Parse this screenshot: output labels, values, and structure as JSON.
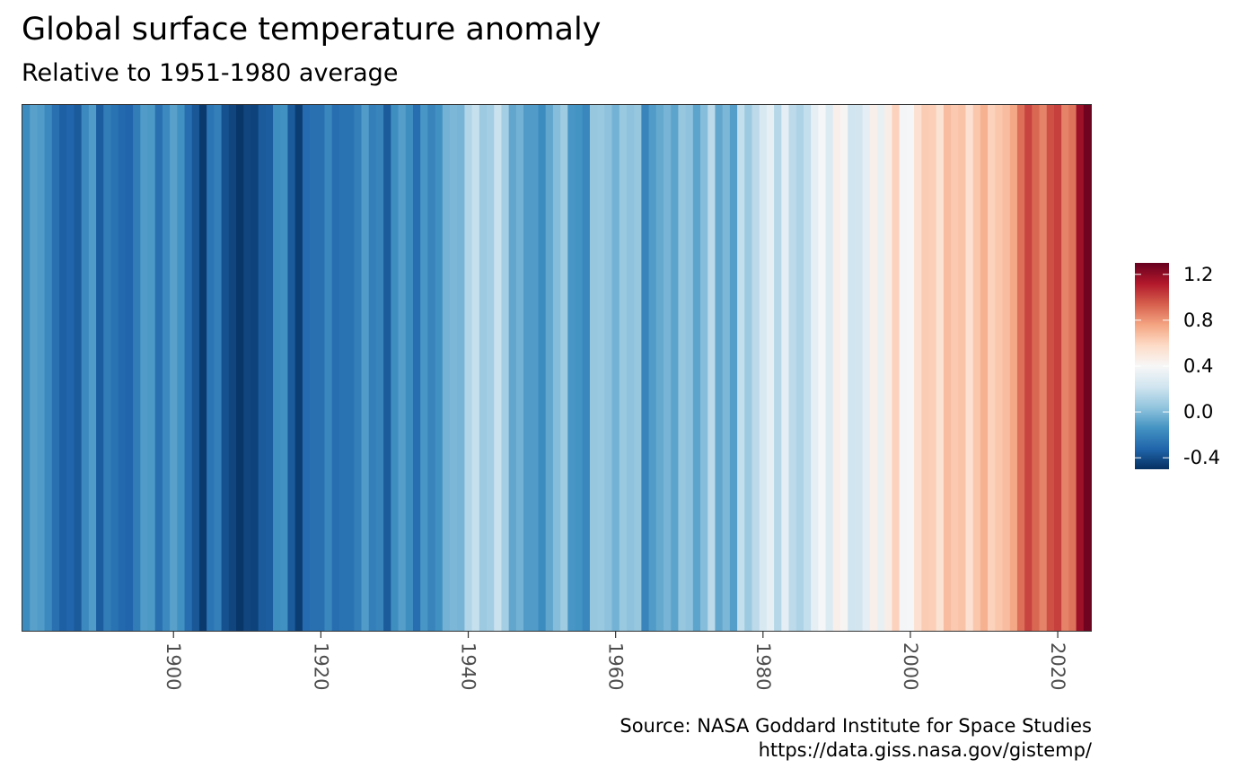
{
  "chart_data": {
    "type": "heatmap",
    "title": "Global surface temperature anomaly",
    "subtitle": "Relative to 1951-1980 average",
    "caption": [
      "Source: NASA Goddard Institute for Space Studies",
      "https://data.giss.nasa.gov/gistemp/"
    ],
    "x_label": "",
    "x_start_year": 1880,
    "x_end_year": 2024,
    "x_ticks": [
      "1900",
      "1920",
      "1940",
      "1960",
      "1980",
      "2000",
      "2020"
    ],
    "years": [
      1880,
      1881,
      1882,
      1883,
      1884,
      1885,
      1886,
      1887,
      1888,
      1889,
      1890,
      1891,
      1892,
      1893,
      1894,
      1895,
      1896,
      1897,
      1898,
      1899,
      1900,
      1901,
      1902,
      1903,
      1904,
      1905,
      1906,
      1907,
      1908,
      1909,
      1910,
      1911,
      1912,
      1913,
      1914,
      1915,
      1916,
      1917,
      1918,
      1919,
      1920,
      1921,
      1922,
      1923,
      1924,
      1925,
      1926,
      1927,
      1928,
      1929,
      1930,
      1931,
      1932,
      1933,
      1934,
      1935,
      1936,
      1937,
      1938,
      1939,
      1940,
      1941,
      1942,
      1943,
      1944,
      1945,
      1946,
      1947,
      1948,
      1949,
      1950,
      1951,
      1952,
      1953,
      1954,
      1955,
      1956,
      1957,
      1958,
      1959,
      1960,
      1961,
      1962,
      1963,
      1964,
      1965,
      1966,
      1967,
      1968,
      1969,
      1970,
      1971,
      1972,
      1973,
      1974,
      1975,
      1976,
      1977,
      1978,
      1979,
      1980,
      1981,
      1982,
      1983,
      1984,
      1985,
      1986,
      1987,
      1988,
      1989,
      1990,
      1991,
      1992,
      1993,
      1994,
      1995,
      1996,
      1997,
      1998,
      1999,
      2000,
      2001,
      2002,
      2003,
      2004,
      2005,
      2006,
      2007,
      2008,
      2009,
      2010,
      2011,
      2012,
      2013,
      2014,
      2015,
      2016,
      2017,
      2018,
      2019,
      2020,
      2021,
      2022,
      2023,
      2024
    ],
    "anomaly": [
      -0.17,
      -0.09,
      -0.11,
      -0.18,
      -0.28,
      -0.34,
      -0.32,
      -0.36,
      -0.18,
      -0.11,
      -0.35,
      -0.23,
      -0.27,
      -0.31,
      -0.32,
      -0.23,
      -0.11,
      -0.12,
      -0.28,
      -0.18,
      -0.09,
      -0.15,
      -0.29,
      -0.37,
      -0.47,
      -0.26,
      -0.22,
      -0.39,
      -0.43,
      -0.48,
      -0.43,
      -0.44,
      -0.36,
      -0.35,
      -0.16,
      -0.15,
      -0.36,
      -0.46,
      -0.3,
      -0.28,
      -0.28,
      -0.19,
      -0.29,
      -0.27,
      -0.27,
      -0.22,
      -0.11,
      -0.22,
      -0.2,
      -0.36,
      -0.16,
      -0.1,
      -0.16,
      -0.29,
      -0.13,
      -0.2,
      -0.15,
      -0.03,
      -0.01,
      -0.02,
      0.13,
      0.19,
      0.07,
      0.09,
      0.2,
      0.09,
      -0.07,
      -0.03,
      -0.11,
      -0.11,
      -0.17,
      -0.07,
      0.01,
      0.08,
      -0.13,
      -0.14,
      -0.19,
      0.05,
      0.06,
      0.03,
      -0.03,
      0.06,
      0.03,
      0.05,
      -0.2,
      -0.11,
      -0.06,
      -0.02,
      -0.08,
      0.05,
      0.03,
      -0.08,
      0.01,
      0.16,
      -0.07,
      -0.01,
      -0.1,
      0.18,
      0.07,
      0.16,
      0.26,
      0.32,
      0.14,
      0.31,
      0.16,
      0.12,
      0.18,
      0.32,
      0.39,
      0.27,
      0.45,
      0.41,
      0.22,
      0.23,
      0.31,
      0.45,
      0.33,
      0.46,
      0.61,
      0.38,
      0.39,
      0.54,
      0.63,
      0.62,
      0.53,
      0.68,
      0.64,
      0.66,
      0.54,
      0.65,
      0.72,
      0.61,
      0.65,
      0.68,
      0.75,
      0.9,
      1.01,
      0.92,
      0.85,
      0.98,
      1.02,
      0.85,
      0.89,
      1.17,
      1.28
    ],
    "color_scale": {
      "palette": "RdBu (reversed)",
      "colors": [
        "#053061",
        "#2166ac",
        "#4393c3",
        "#92c5de",
        "#d1e5f0",
        "#f7f7f7",
        "#fddbc7",
        "#f4a582",
        "#d6604d",
        "#b2182b",
        "#67001f"
      ],
      "limits": [
        -0.5,
        1.3
      ],
      "legend_ticks": [
        "1.2",
        "0.8",
        "0.4",
        "0.0",
        "-0.4"
      ],
      "legend_position": "right"
    },
    "grid": false
  }
}
